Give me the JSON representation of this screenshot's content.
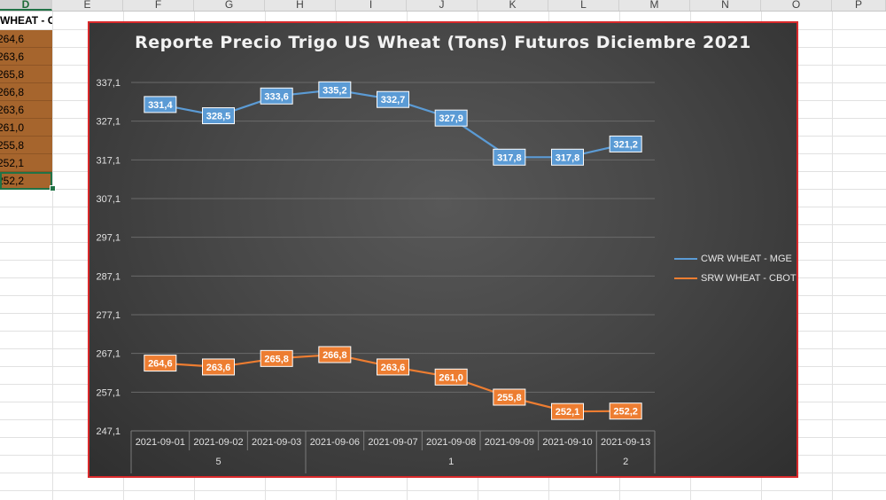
{
  "spreadsheet": {
    "columns": [
      "D",
      "E",
      "F",
      "G",
      "H",
      "I",
      "J",
      "K",
      "L",
      "M",
      "N",
      "O",
      "P"
    ],
    "active_column": "D",
    "header_cell": "WHEAT - CBOT",
    "cells": [
      "264,6",
      "263,6",
      "265,8",
      "266,8",
      "263,6",
      "261,0",
      "255,8",
      "252,1",
      "252,2"
    ],
    "cell_fill": "#a6652d",
    "selected_cell_index": 8
  },
  "chart_data": {
    "type": "line",
    "title": "Reporte Precio Trigo US Wheat (Tons) Futuros Diciembre 2021",
    "categories": [
      "2021-09-01",
      "2021-09-02",
      "2021-09-03",
      "2021-09-06",
      "2021-09-07",
      "2021-09-08",
      "2021-09-09",
      "2021-09-10",
      "2021-09-13"
    ],
    "group_labels": [
      "5",
      "1",
      "2"
    ],
    "group_sizes": [
      3,
      5,
      1
    ],
    "y_ticks": [
      "247,1",
      "257,1",
      "267,1",
      "277,1",
      "287,1",
      "297,1",
      "307,1",
      "317,1",
      "327,1",
      "337,1"
    ],
    "ylim": [
      247.1,
      337.1
    ],
    "grid": true,
    "legend_position": "right",
    "series": [
      {
        "name": "CWR WHEAT - MGE",
        "color": "#5b9bd5",
        "values": [
          331.4,
          328.5,
          333.6,
          335.2,
          332.7,
          327.9,
          317.8,
          317.8,
          321.2
        ],
        "labels": [
          "331,4",
          "328,5",
          "333,6",
          "335,2",
          "332,7",
          "327,9",
          "317,8",
          "317,8",
          "321,2"
        ]
      },
      {
        "name": "SRW WHEAT - CBOT",
        "color": "#ed7d31",
        "values": [
          264.6,
          263.6,
          265.8,
          266.8,
          263.6,
          261.0,
          255.8,
          252.1,
          252.2
        ],
        "labels": [
          "264,6",
          "263,6",
          "265,8",
          "266,8",
          "263,6",
          "261,0",
          "255,8",
          "252,1",
          "252,2"
        ]
      }
    ],
    "border_color": "#d9292b"
  }
}
